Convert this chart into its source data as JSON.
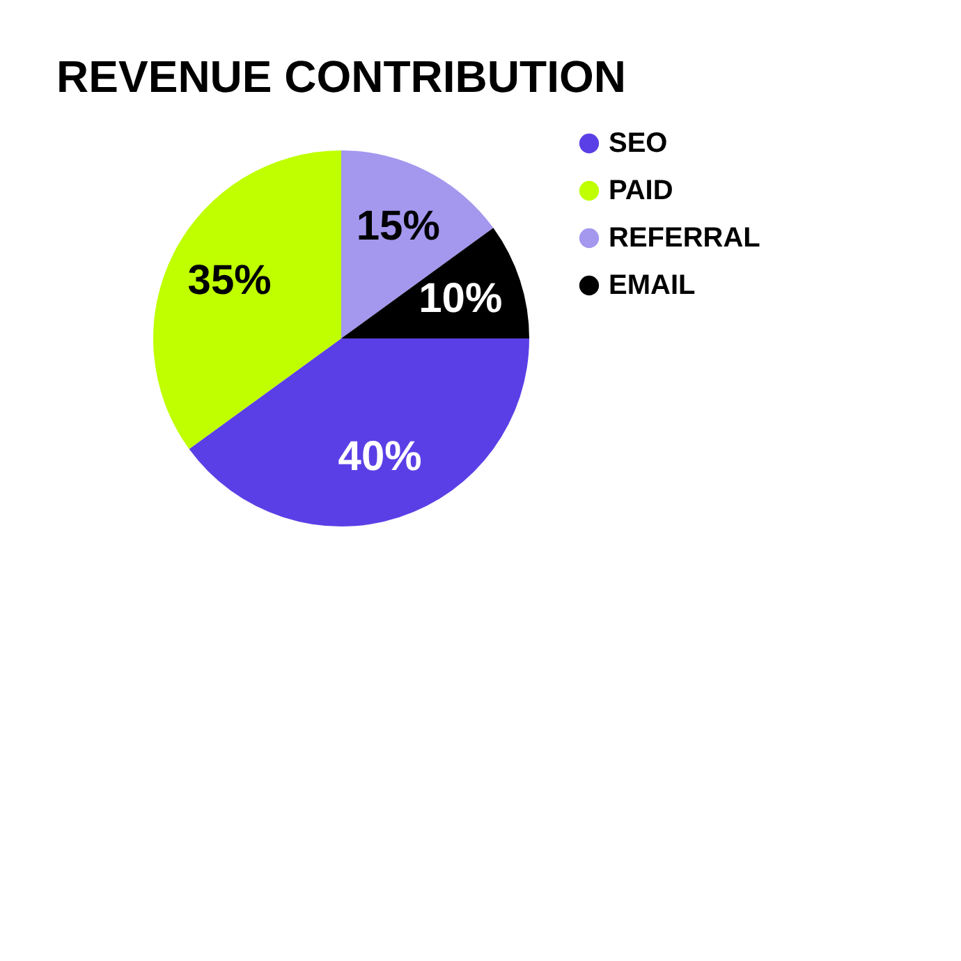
{
  "chart_data": {
    "type": "pie",
    "title": "REVENUE CONTRIBUTION",
    "categories": [
      "SEO",
      "PAID",
      "REFERRAL",
      "EMAIL"
    ],
    "values": [
      40,
      35,
      15,
      10
    ],
    "value_labels": [
      "40%",
      "35%",
      "15%",
      "10%"
    ],
    "colors": [
      "#5b3fe6",
      "#bfff00",
      "#a397ee",
      "#000000"
    ],
    "legend": "right"
  }
}
